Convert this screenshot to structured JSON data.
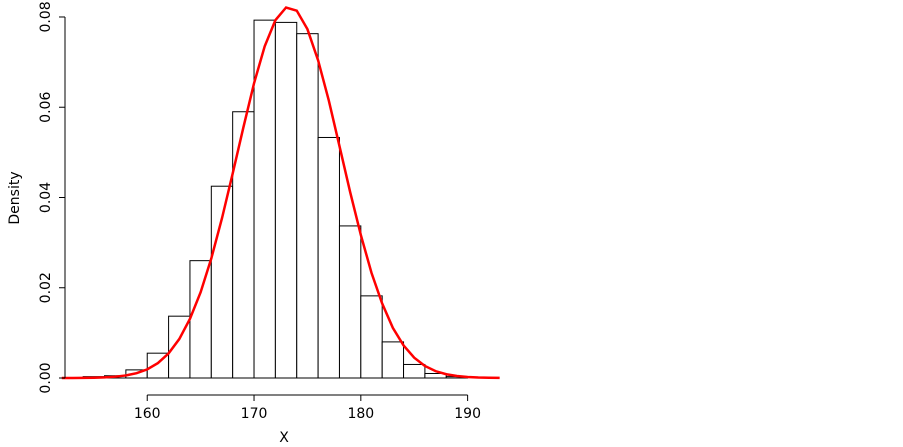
{
  "chart_data": {
    "type": "histogram",
    "xlabel": "X",
    "ylabel": "Density",
    "bins": [
      154,
      156,
      158,
      160,
      162,
      164,
      166,
      168,
      170,
      172,
      174,
      176,
      178,
      180,
      182,
      184,
      186,
      188,
      190
    ],
    "counts": [
      0.0003,
      0.0005,
      0.0018,
      0.0055,
      0.0137,
      0.026,
      0.0425,
      0.059,
      0.0793,
      0.0788,
      0.0763,
      0.0533,
      0.0337,
      0.0182,
      0.008,
      0.003,
      0.001,
      0.0003
    ],
    "bar_edge_color": "#000000",
    "bar_fill": "#ffffff",
    "curve": {
      "type": "line",
      "color": "#ff0000",
      "x": [
        152,
        153,
        154,
        155,
        156,
        157,
        158,
        159,
        160,
        161,
        162,
        163,
        164,
        165,
        166,
        167,
        168,
        169,
        170,
        171,
        172,
        173,
        174,
        175,
        176,
        177,
        178,
        179,
        180,
        181,
        182,
        183,
        184,
        185,
        186,
        187,
        188,
        189,
        190,
        191,
        192,
        193
      ],
      "values": [
        5.3e-06,
        1.29e-05,
        3e-05,
        6.66e-05,
        0.000142,
        0.00029,
        0.000568,
        0.001065,
        0.00191,
        0.0033,
        0.00545,
        0.00863,
        0.0131,
        0.019,
        0.0265,
        0.0354,
        0.0453,
        0.0555,
        0.0653,
        0.0735,
        0.0793,
        0.0821,
        0.0814,
        0.0773,
        0.0704,
        0.0615,
        0.0514,
        0.0412,
        0.0317,
        0.0233,
        0.0165,
        0.0111,
        0.00722,
        0.00449,
        0.00267,
        0.00152,
        0.00083,
        0.000436,
        0.000219,
        0.000105,
        4.87e-05,
        2.15e-05
      ]
    },
    "xlim": [
      152.3,
      193.5
    ],
    "ylim": [
      0,
      0.0825
    ],
    "xticks": [
      160,
      170,
      180,
      190
    ],
    "yticks": [
      {
        "value": 0,
        "label": "0.00"
      },
      {
        "value": 0.02,
        "label": "0.02"
      },
      {
        "value": 0.04,
        "label": "0.04"
      },
      {
        "value": 0.06,
        "label": "0.06"
      },
      {
        "value": 0.08,
        "label": "0.08"
      }
    ]
  }
}
